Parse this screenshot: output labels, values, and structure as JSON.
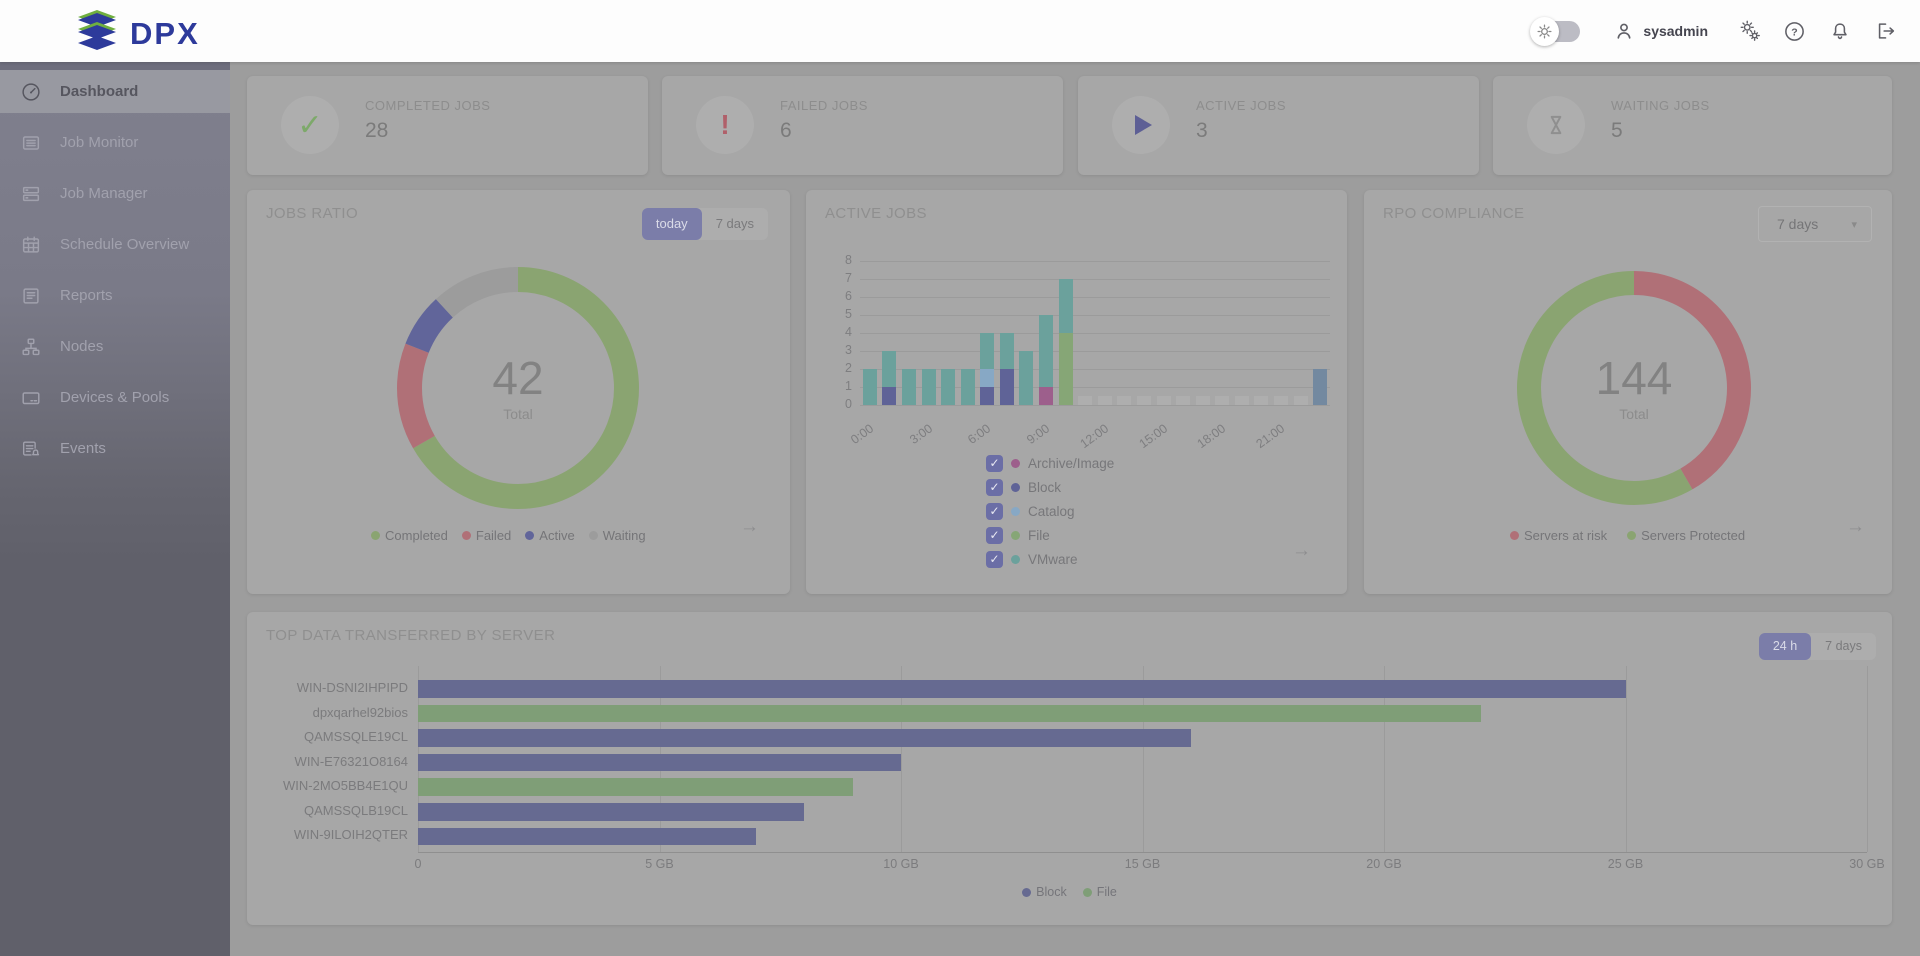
{
  "header": {
    "logo_text": "DPX",
    "username": "sysadmin",
    "icons": [
      "settings-toggle",
      "user",
      "services",
      "help",
      "notifications",
      "logout"
    ]
  },
  "sidebar": {
    "items": [
      {
        "label": "Dashboard",
        "active": true
      },
      {
        "label": "Job Monitor",
        "active": false
      },
      {
        "label": "Job Manager",
        "active": false
      },
      {
        "label": "Schedule Overview",
        "active": false
      },
      {
        "label": "Reports",
        "active": false
      },
      {
        "label": "Nodes",
        "active": false
      },
      {
        "label": "Devices & Pools",
        "active": false
      },
      {
        "label": "Events",
        "active": false
      }
    ]
  },
  "summary_cards": [
    {
      "label": "COMPLETED JOBS",
      "value": "28",
      "icon": "check",
      "color": "#7da96a"
    },
    {
      "label": "FAILED JOBS",
      "value": "6",
      "icon": "exclamation",
      "color": "#b0606a"
    },
    {
      "label": "ACTIVE JOBS",
      "value": "3",
      "icon": "play",
      "color": "#5d5f95"
    },
    {
      "label": "WAITING JOBS",
      "value": "5",
      "icon": "hourglass",
      "color": "#8f8f8f"
    }
  ],
  "jobs_ratio": {
    "title": "JOBS RATIO",
    "buttons": {
      "active": "today",
      "inactive": "7 days"
    },
    "total": "42",
    "total_label": "Total",
    "chart_data": {
      "type": "donut",
      "segments": [
        {
          "label": "Completed",
          "value": 28,
          "color": "#8aa471"
        },
        {
          "label": "Failed",
          "value": 6,
          "color": "#b07077"
        },
        {
          "label": "Active",
          "value": 3,
          "color": "#61659a"
        },
        {
          "label": "Waiting",
          "value": 5,
          "color": "#9c9c9c"
        }
      ]
    }
  },
  "active_jobs": {
    "title": "ACTIVE JOBS",
    "legend": [
      {
        "label": "Archive/Image",
        "color": "#9d5f8c",
        "checked": true
      },
      {
        "label": "Block",
        "color": "#5f6397",
        "checked": true
      },
      {
        "label": "Catalog",
        "color": "#87a8c5",
        "checked": true
      },
      {
        "label": "File",
        "color": "#86a676",
        "checked": true
      },
      {
        "label": "VMware",
        "color": "#6ba19c",
        "checked": true
      }
    ],
    "chart_data": {
      "type": "stacked-bar",
      "ylim": [
        0,
        8
      ],
      "yticks": [
        0,
        1,
        2,
        3,
        4,
        5,
        6,
        7,
        8
      ],
      "xticks": [
        "0:00",
        "3:00",
        "6:00",
        "9:00",
        "12:00",
        "15:00",
        "18:00",
        "21:00"
      ],
      "series_colors": {
        "archive": "#9d5f8c",
        "block": "#5f6397",
        "catalog": "#87a8c5",
        "file": "#86a676",
        "vmware": "#6ba19c",
        "empty": "#aeaeae",
        "highlight": "#7389a0"
      },
      "bars": [
        {
          "hour": "0:00",
          "stack": [
            [
              "vmware",
              2
            ]
          ]
        },
        {
          "hour": "1:00",
          "stack": [
            [
              "block",
              1
            ],
            [
              "vmware",
              2
            ]
          ]
        },
        {
          "hour": "2:00",
          "stack": [
            [
              "vmware",
              2
            ]
          ]
        },
        {
          "hour": "3:00",
          "stack": [
            [
              "vmware",
              2
            ]
          ]
        },
        {
          "hour": "4:00",
          "stack": [
            [
              "vmware",
              2
            ]
          ]
        },
        {
          "hour": "5:00",
          "stack": [
            [
              "vmware",
              2
            ]
          ]
        },
        {
          "hour": "6:00",
          "stack": [
            [
              "block",
              1
            ],
            [
              "catalog",
              1
            ],
            [
              "vmware",
              2
            ]
          ]
        },
        {
          "hour": "7:00",
          "stack": [
            [
              "block",
              2
            ],
            [
              "vmware",
              2
            ]
          ]
        },
        {
          "hour": "8:00",
          "stack": [
            [
              "vmware",
              3
            ]
          ]
        },
        {
          "hour": "9:00",
          "stack": [
            [
              "archive",
              1
            ],
            [
              "vmware",
              4
            ]
          ]
        },
        {
          "hour": "10:00",
          "stack": [
            [
              "file",
              4
            ],
            [
              "vmware",
              3
            ]
          ]
        },
        {
          "hour": "11:00",
          "stack": [
            [
              "empty",
              0.5
            ]
          ]
        },
        {
          "hour": "12:00",
          "stack": [
            [
              "empty",
              0.5
            ]
          ]
        },
        {
          "hour": "13:00",
          "stack": [
            [
              "empty",
              0.5
            ]
          ]
        },
        {
          "hour": "14:00",
          "stack": [
            [
              "empty",
              0.5
            ]
          ]
        },
        {
          "hour": "15:00",
          "stack": [
            [
              "empty",
              0.5
            ]
          ]
        },
        {
          "hour": "16:00",
          "stack": [
            [
              "empty",
              0.5
            ]
          ]
        },
        {
          "hour": "17:00",
          "stack": [
            [
              "empty",
              0.5
            ]
          ]
        },
        {
          "hour": "18:00",
          "stack": [
            [
              "empty",
              0.5
            ]
          ]
        },
        {
          "hour": "19:00",
          "stack": [
            [
              "empty",
              0.5
            ]
          ]
        },
        {
          "hour": "20:00",
          "stack": [
            [
              "empty",
              0.5
            ]
          ]
        },
        {
          "hour": "21:00",
          "stack": [
            [
              "empty",
              0.5
            ]
          ]
        },
        {
          "hour": "22:00",
          "stack": [
            [
              "empty",
              0.5
            ]
          ]
        },
        {
          "hour": "23:00",
          "stack": [
            [
              "highlight",
              2
            ]
          ]
        }
      ]
    }
  },
  "rpo": {
    "title": "RPO COMPLIANCE",
    "dropdown": "7 days",
    "total": "144",
    "total_label": "Total",
    "chart_data": {
      "type": "donut",
      "segments": [
        {
          "label": "Servers at risk",
          "value": 60,
          "color": "#b07077"
        },
        {
          "label": "Servers Protected",
          "value": 84,
          "color": "#8aa471"
        }
      ]
    }
  },
  "top_data": {
    "title": "TOP DATA TRANSFERRED BY SERVER",
    "buttons": {
      "active": "24 h",
      "inactive": "7 days"
    },
    "chart_data": {
      "type": "hbar",
      "xlim": [
        0,
        30
      ],
      "xticks": [
        "0",
        "5 GB",
        "10 GB",
        "15 GB",
        "20 GB",
        "25 GB",
        "30 GB"
      ],
      "rows": [
        {
          "server": "WIN-DSNI2IHPIPD",
          "value_gb": 25,
          "series": "Block"
        },
        {
          "server": "dpxqarhel92bios",
          "value_gb": 22,
          "series": "File"
        },
        {
          "server": "QAMSSQLE19CL",
          "value_gb": 16,
          "series": "Block"
        },
        {
          "server": "WIN-E76321O8164",
          "value_gb": 10,
          "series": "Block"
        },
        {
          "server": "WIN-2MO5BB4E1QU",
          "value_gb": 9,
          "series": "File"
        },
        {
          "server": "QAMSSQLB19CL",
          "value_gb": 8,
          "series": "Block"
        },
        {
          "server": "WIN-9ILOIH2QTER",
          "value_gb": 7,
          "series": "Block"
        }
      ],
      "legend": [
        {
          "label": "Block",
          "color": "#666a91"
        },
        {
          "label": "File",
          "color": "#7f9e77"
        }
      ]
    }
  },
  "colors": {
    "accent_purple": "#7b7da9",
    "logo_blue": "#2d3a9b",
    "logo_green": "#6fae3f",
    "panel_bg": "#a7a7a7",
    "page_bg": "#9d9d9d",
    "sidebar_bg": "#6b6b78"
  }
}
